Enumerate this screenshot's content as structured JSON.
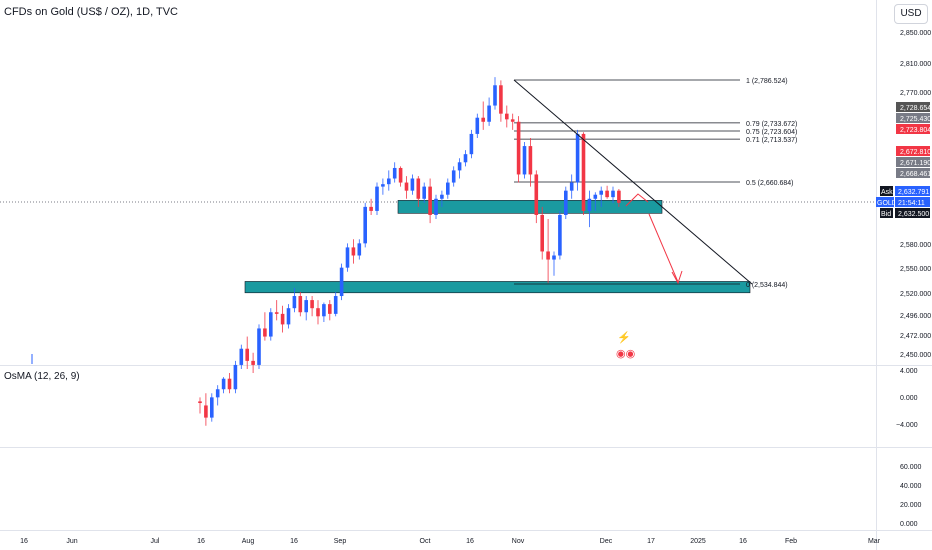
{
  "header": {
    "title": "CFDs on Gold (US$ / OZ), 1D, TVC",
    "currency_button": "USD"
  },
  "colors": {
    "up": "#2962ff",
    "down": "#f23645",
    "zone": "#1a9aa0",
    "projection": "#f23645"
  },
  "chart_data": {
    "type": "candlestick",
    "title": "CFDs on Gold (US$ / OZ), 1D, TVC",
    "x_ticks": [
      "16",
      "Jun",
      "Jul",
      "16",
      "Aug",
      "16",
      "Sep",
      "Oct",
      "16",
      "Nov",
      "Dec",
      "17",
      "2025",
      "16",
      "Feb",
      "Mar"
    ],
    "y_ticks": [
      "2,850.000",
      "2,810.000",
      "2,770.000",
      "2,580.000",
      "2,550.000",
      "2,520.000",
      "2,496.000",
      "2,472.000",
      "2,450.000"
    ],
    "price_tags": [
      {
        "label": "2,728.654",
        "color": "#555555"
      },
      {
        "label": "2,725.430",
        "color": "#787b86"
      },
      {
        "label": "2,723.804",
        "color": "#787b86"
      },
      {
        "label": "2,672.810",
        "color": "#f23645"
      },
      {
        "label": "2,671.190",
        "color": "#787b86"
      },
      {
        "label": "2,668.461",
        "color": "#787b86"
      }
    ],
    "quote": {
      "ask_label": "Ask",
      "ask": "2,632.791",
      "symbol": "GOLD",
      "countdown": "21:54:11",
      "bid_label": "Bid",
      "bid": "2,632.500"
    },
    "fib_levels": [
      {
        "label": "1 (2,786.524)",
        "value": 2786.524
      },
      {
        "label": "0.79 (2,733.672)",
        "value": 2733.672
      },
      {
        "label": "0.75 (2,723.604)",
        "value": 2723.604
      },
      {
        "label": "0.71 (2,713.537)",
        "value": 2713.537
      },
      {
        "label": "0.5 (2,660.684)",
        "value": 2660.684
      },
      {
        "label": "0 (2,534.844)",
        "value": 2534.844
      }
    ],
    "candles": [
      {
        "o": 2390,
        "h": 2395,
        "l": 2375,
        "c": 2388
      },
      {
        "o": 2385,
        "h": 2400,
        "l": 2360,
        "c": 2370
      },
      {
        "o": 2370,
        "h": 2400,
        "l": 2365,
        "c": 2395
      },
      {
        "o": 2395,
        "h": 2410,
        "l": 2385,
        "c": 2405
      },
      {
        "o": 2405,
        "h": 2420,
        "l": 2400,
        "c": 2418
      },
      {
        "o": 2418,
        "h": 2425,
        "l": 2400,
        "c": 2405
      },
      {
        "o": 2405,
        "h": 2440,
        "l": 2400,
        "c": 2435
      },
      {
        "o": 2435,
        "h": 2460,
        "l": 2430,
        "c": 2455
      },
      {
        "o": 2455,
        "h": 2470,
        "l": 2430,
        "c": 2440
      },
      {
        "o": 2440,
        "h": 2450,
        "l": 2425,
        "c": 2435
      },
      {
        "o": 2435,
        "h": 2485,
        "l": 2430,
        "c": 2480
      },
      {
        "o": 2480,
        "h": 2500,
        "l": 2465,
        "c": 2470
      },
      {
        "o": 2470,
        "h": 2505,
        "l": 2465,
        "c": 2500
      },
      {
        "o": 2500,
        "h": 2515,
        "l": 2490,
        "c": 2498
      },
      {
        "o": 2498,
        "h": 2508,
        "l": 2475,
        "c": 2485
      },
      {
        "o": 2485,
        "h": 2510,
        "l": 2480,
        "c": 2505
      },
      {
        "o": 2505,
        "h": 2530,
        "l": 2500,
        "c": 2520
      },
      {
        "o": 2520,
        "h": 2525,
        "l": 2495,
        "c": 2500
      },
      {
        "o": 2500,
        "h": 2520,
        "l": 2490,
        "c": 2515
      },
      {
        "o": 2515,
        "h": 2520,
        "l": 2495,
        "c": 2505
      },
      {
        "o": 2505,
        "h": 2515,
        "l": 2485,
        "c": 2495
      },
      {
        "o": 2495,
        "h": 2512,
        "l": 2488,
        "c": 2510
      },
      {
        "o": 2510,
        "h": 2515,
        "l": 2490,
        "c": 2498
      },
      {
        "o": 2498,
        "h": 2525,
        "l": 2495,
        "c": 2520
      },
      {
        "o": 2520,
        "h": 2560,
        "l": 2515,
        "c": 2555
      },
      {
        "o": 2555,
        "h": 2585,
        "l": 2550,
        "c": 2580
      },
      {
        "o": 2580,
        "h": 2590,
        "l": 2560,
        "c": 2570
      },
      {
        "o": 2570,
        "h": 2590,
        "l": 2565,
        "c": 2585
      },
      {
        "o": 2585,
        "h": 2635,
        "l": 2580,
        "c": 2630
      },
      {
        "o": 2630,
        "h": 2640,
        "l": 2620,
        "c": 2625
      },
      {
        "o": 2625,
        "h": 2660,
        "l": 2620,
        "c": 2655
      },
      {
        "o": 2655,
        "h": 2665,
        "l": 2645,
        "c": 2658
      },
      {
        "o": 2658,
        "h": 2675,
        "l": 2650,
        "c": 2665
      },
      {
        "o": 2665,
        "h": 2685,
        "l": 2660,
        "c": 2678
      },
      {
        "o": 2678,
        "h": 2680,
        "l": 2655,
        "c": 2660
      },
      {
        "o": 2660,
        "h": 2668,
        "l": 2640,
        "c": 2650
      },
      {
        "o": 2650,
        "h": 2670,
        "l": 2645,
        "c": 2665
      },
      {
        "o": 2665,
        "h": 2668,
        "l": 2630,
        "c": 2640
      },
      {
        "o": 2640,
        "h": 2660,
        "l": 2635,
        "c": 2655
      },
      {
        "o": 2655,
        "h": 2665,
        "l": 2610,
        "c": 2620
      },
      {
        "o": 2620,
        "h": 2645,
        "l": 2615,
        "c": 2640
      },
      {
        "o": 2640,
        "h": 2650,
        "l": 2630,
        "c": 2645
      },
      {
        "o": 2645,
        "h": 2665,
        "l": 2640,
        "c": 2660
      },
      {
        "o": 2660,
        "h": 2680,
        "l": 2655,
        "c": 2675
      },
      {
        "o": 2675,
        "h": 2690,
        "l": 2665,
        "c": 2685
      },
      {
        "o": 2685,
        "h": 2700,
        "l": 2680,
        "c": 2695
      },
      {
        "o": 2695,
        "h": 2725,
        "l": 2690,
        "c": 2720
      },
      {
        "o": 2720,
        "h": 2745,
        "l": 2715,
        "c": 2740
      },
      {
        "o": 2740,
        "h": 2760,
        "l": 2725,
        "c": 2735
      },
      {
        "o": 2735,
        "h": 2765,
        "l": 2730,
        "c": 2755
      },
      {
        "o": 2755,
        "h": 2790,
        "l": 2750,
        "c": 2780
      },
      {
        "o": 2780,
        "h": 2786,
        "l": 2735,
        "c": 2745
      },
      {
        "o": 2745,
        "h": 2755,
        "l": 2728,
        "c": 2738
      },
      {
        "o": 2738,
        "h": 2745,
        "l": 2725,
        "c": 2735
      },
      {
        "o": 2735,
        "h": 2742,
        "l": 2660,
        "c": 2670
      },
      {
        "o": 2670,
        "h": 2710,
        "l": 2665,
        "c": 2705
      },
      {
        "o": 2705,
        "h": 2715,
        "l": 2655,
        "c": 2670
      },
      {
        "o": 2670,
        "h": 2675,
        "l": 2610,
        "c": 2620
      },
      {
        "o": 2620,
        "h": 2630,
        "l": 2565,
        "c": 2575
      },
      {
        "o": 2575,
        "h": 2615,
        "l": 2536,
        "c": 2565
      },
      {
        "o": 2565,
        "h": 2575,
        "l": 2545,
        "c": 2570
      },
      {
        "o": 2570,
        "h": 2625,
        "l": 2565,
        "c": 2620
      },
      {
        "o": 2620,
        "h": 2655,
        "l": 2615,
        "c": 2650
      },
      {
        "o": 2650,
        "h": 2670,
        "l": 2640,
        "c": 2660
      },
      {
        "o": 2660,
        "h": 2725,
        "l": 2650,
        "c": 2720
      },
      {
        "o": 2720,
        "h": 2722,
        "l": 2620,
        "c": 2625
      },
      {
        "o": 2625,
        "h": 2650,
        "l": 2605,
        "c": 2640
      },
      {
        "o": 2640,
        "h": 2648,
        "l": 2625,
        "c": 2645
      },
      {
        "o": 2645,
        "h": 2655,
        "l": 2630,
        "c": 2650
      },
      {
        "o": 2650,
        "h": 2656,
        "l": 2640,
        "c": 2642
      },
      {
        "o": 2642,
        "h": 2655,
        "l": 2635,
        "c": 2650
      },
      {
        "o": 2650,
        "h": 2652,
        "l": 2630,
        "c": 2635
      }
    ],
    "zones": [
      {
        "name": "support-zone-upper",
        "low": 2622,
        "high": 2638
      },
      {
        "name": "support-zone-lower",
        "low": 2524,
        "high": 2538
      }
    ],
    "osma": {
      "label": "OsMA (12, 26, 9)",
      "y_ticks": [
        "4.000",
        "0.000",
        "−4.000"
      ]
    },
    "volume": {
      "y_ticks": [
        "60.000",
        "40.000",
        "20.000",
        "0.000"
      ]
    }
  }
}
